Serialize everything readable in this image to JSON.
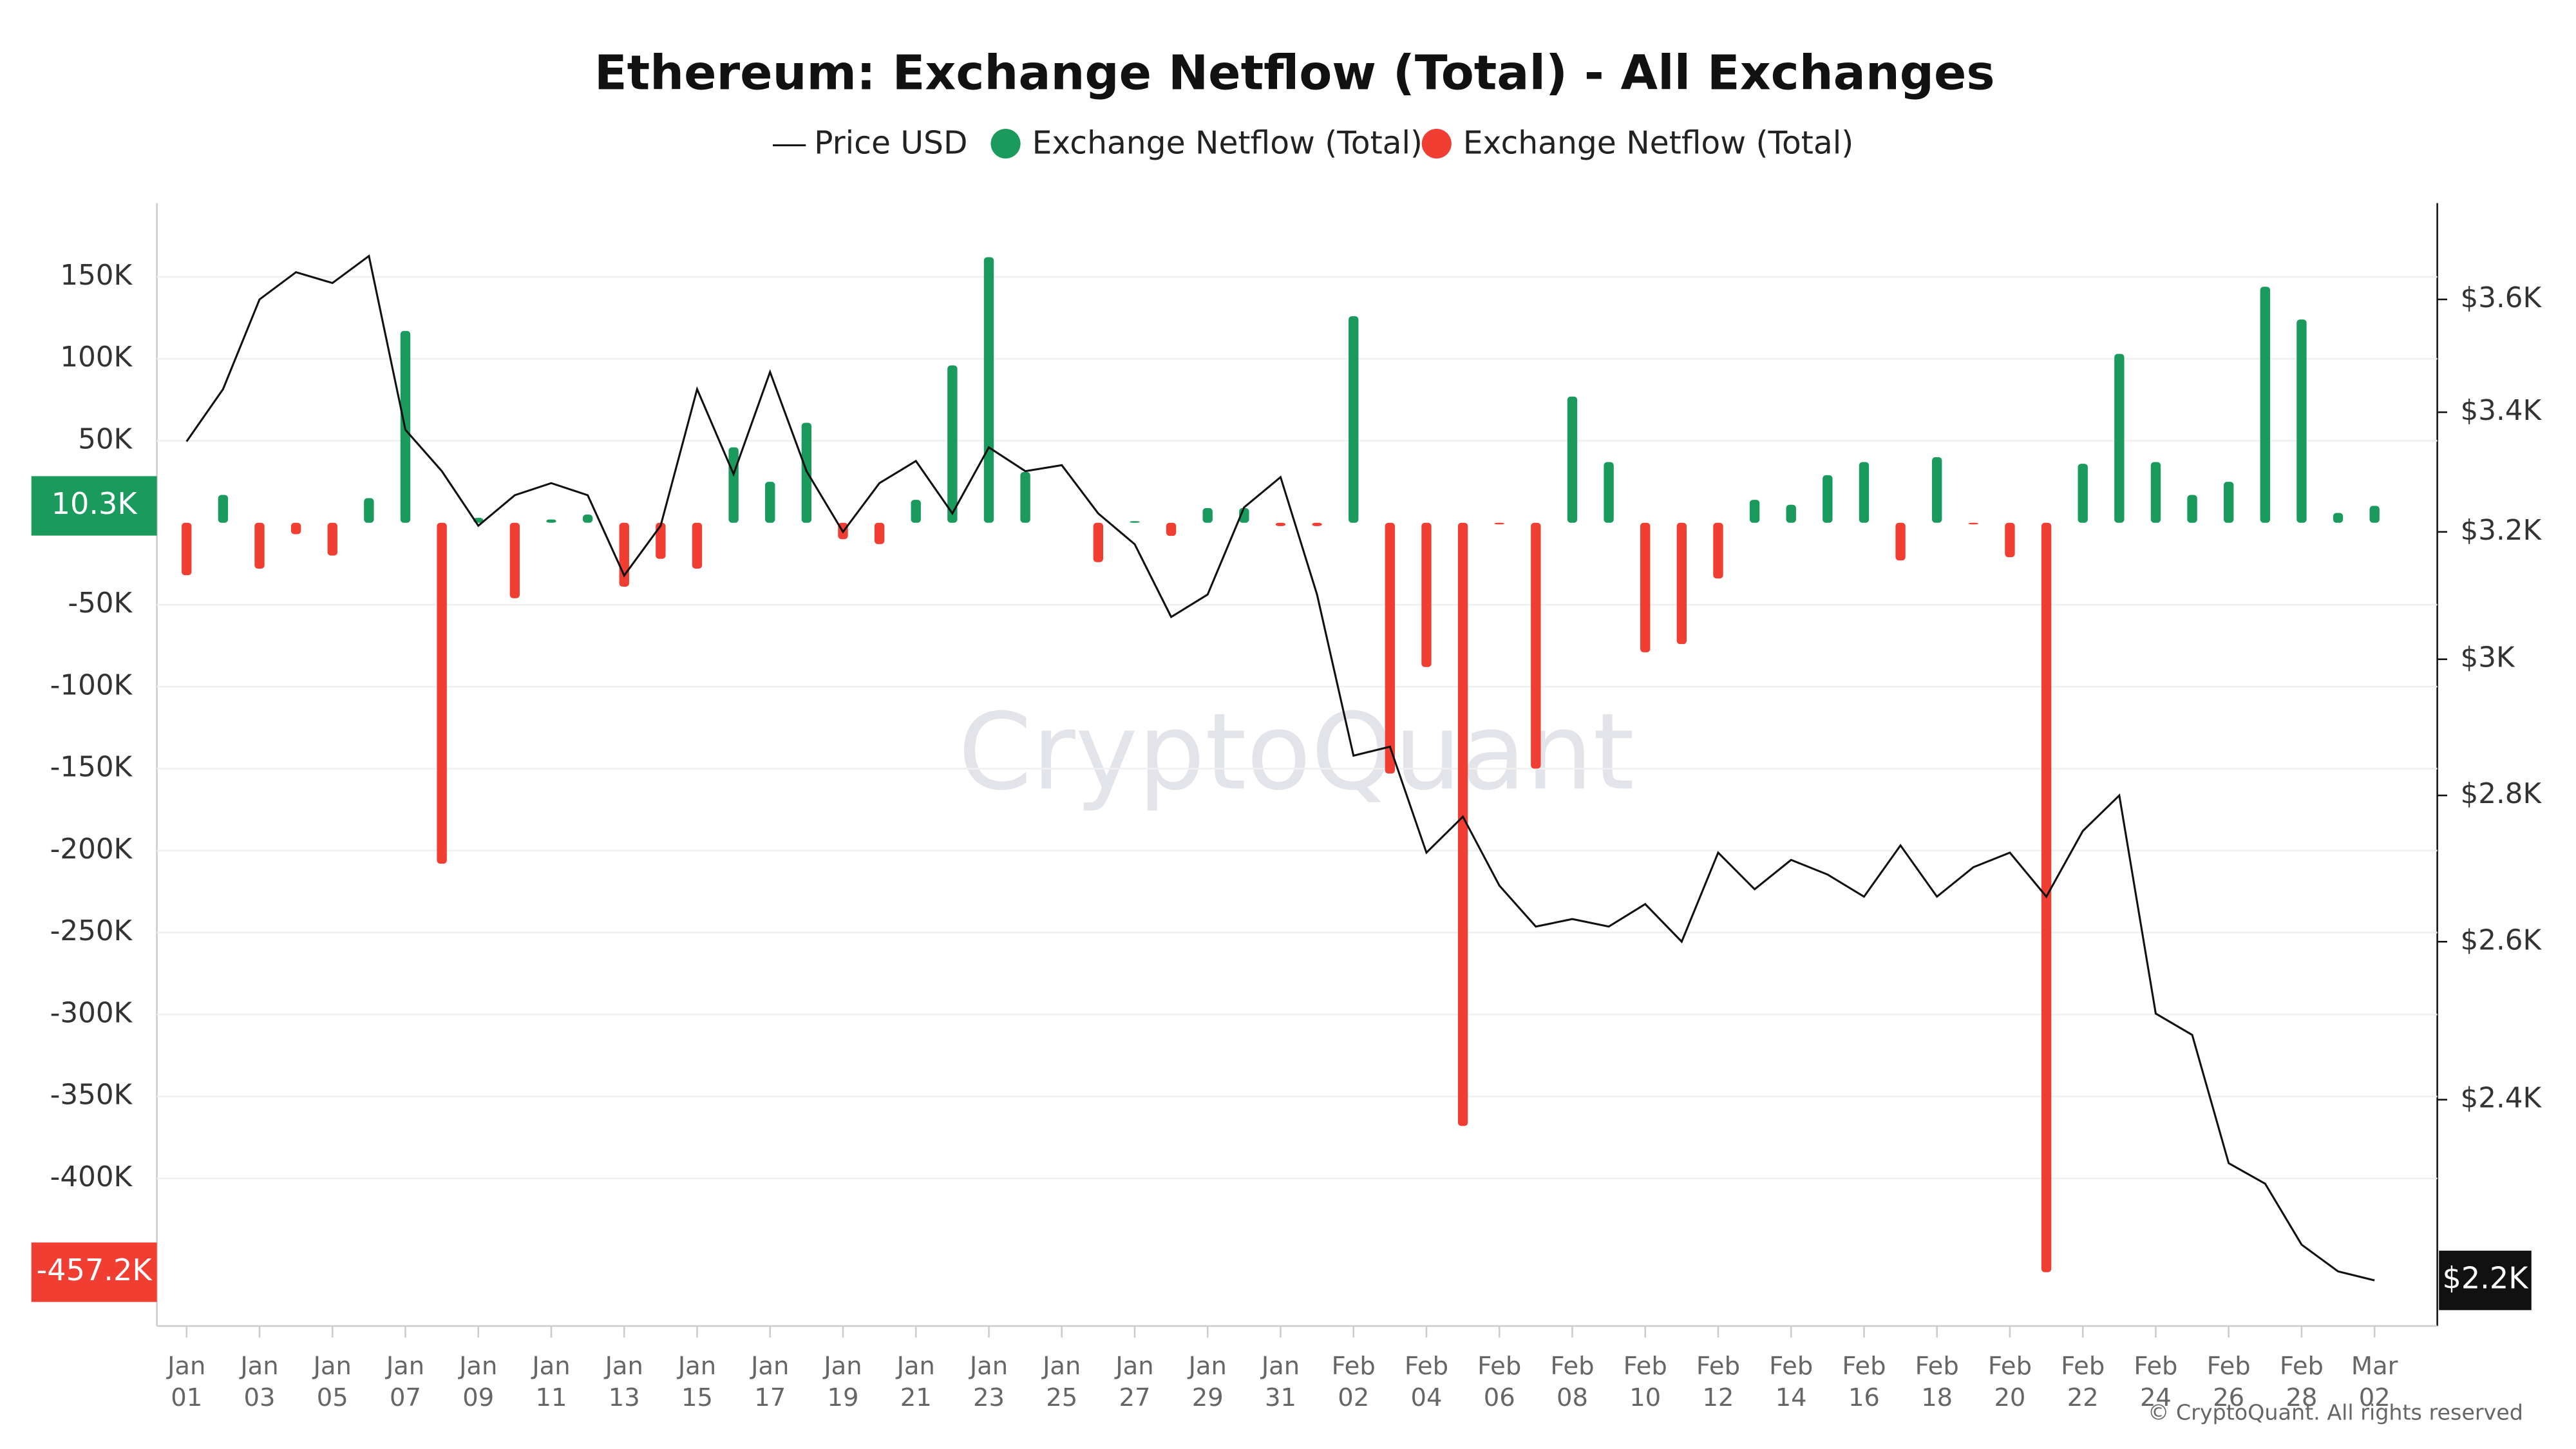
{
  "chart_data": {
    "type": "bar",
    "title": "Ethereum: Exchange Netflow (Total) - All Exchanges",
    "watermark": "CryptoQuant",
    "footer": "© CryptoQuant. All rights reserved",
    "categories": [
      "Jan 01",
      null,
      "Jan 03",
      null,
      "Jan 05",
      null,
      "Jan 07",
      null,
      "Jan 09",
      null,
      "Jan 11",
      null,
      "Jan 13",
      null,
      "Jan 15",
      null,
      "Jan 17",
      null,
      "Jan 19",
      null,
      "Jan 21",
      null,
      "Jan 23",
      null,
      "Jan 25",
      null,
      "Jan 27",
      null,
      "Jan 29",
      null,
      "Jan 31",
      null,
      "Feb 02",
      null,
      "Feb 04",
      null,
      "Feb 06",
      null,
      "Feb 08",
      null,
      "Feb 10",
      null,
      "Feb 12",
      null,
      "Feb 14",
      null,
      "Feb 16",
      null,
      "Feb 18",
      null,
      "Feb 20",
      null,
      "Feb 22",
      null,
      "Feb 24",
      null,
      "Feb 26",
      null,
      "Feb 28",
      null,
      "Mar 02"
    ],
    "series": [
      {
        "name": "Price USD",
        "type": "line",
        "color": "#111111",
        "axis": "y2",
        "values": [
          3350,
          3440,
          3600,
          3650,
          3630,
          3680,
          3370,
          3300,
          3210,
          3260,
          3280,
          3260,
          3130,
          3210,
          3440,
          3295,
          3470,
          3300,
          3200,
          3280,
          3317,
          3230,
          3340,
          3300,
          3310,
          3230,
          3180,
          3065,
          3100,
          3240,
          3290,
          3100,
          2857,
          2870,
          2720,
          2770,
          2675,
          2620,
          2630,
          2620,
          2650,
          2600,
          2720,
          2670,
          2710,
          2690,
          2660,
          2730,
          2660,
          2700,
          2720,
          2660,
          2750,
          2800,
          2507,
          2480,
          2324,
          2300,
          2230,
          2200,
          2190
        ]
      },
      {
        "name": "Exchange Netflow (Total)",
        "type": "bar",
        "color": "#1a9a5c",
        "values": [
          null,
          17,
          null,
          null,
          null,
          15,
          117,
          null,
          3,
          null,
          2,
          5,
          null,
          null,
          null,
          46,
          25,
          61,
          null,
          null,
          14,
          96,
          162,
          31,
          null,
          null,
          1,
          null,
          9,
          9,
          null,
          null,
          126,
          null,
          null,
          null,
          null,
          null,
          77,
          37,
          null,
          null,
          null,
          14,
          11,
          29,
          37,
          null,
          40,
          null,
          null,
          null,
          36,
          103,
          37,
          17,
          25,
          144,
          124,
          6,
          10.3
        ]
      },
      {
        "name": "Exchange Netflow (Total)",
        "type": "bar",
        "color": "#f03e33",
        "values": [
          -32,
          null,
          -28,
          -7,
          -20,
          null,
          null,
          -208,
          null,
          -46,
          null,
          null,
          -39,
          -22,
          -28,
          null,
          null,
          null,
          -10,
          -13,
          null,
          null,
          null,
          null,
          null,
          -24,
          null,
          -8,
          null,
          null,
          -2,
          -2,
          null,
          -153,
          -88,
          -368,
          -1,
          -150,
          null,
          null,
          -79,
          -74,
          -34,
          null,
          null,
          null,
          null,
          -23,
          null,
          -1,
          -21,
          -457.2,
          null,
          null,
          null,
          null,
          null,
          null,
          null,
          null,
          null
        ]
      }
    ],
    "ylim": [
      -490,
      195
    ],
    "yticks": [
      {
        "value": 150,
        "label": "150K"
      },
      {
        "value": 100,
        "label": "100K"
      },
      {
        "value": 50,
        "label": "50K"
      },
      {
        "value": -50,
        "label": "-50K"
      },
      {
        "value": -100,
        "label": "-100K"
      },
      {
        "value": -150,
        "label": "-150K"
      },
      {
        "value": -200,
        "label": "-200K"
      },
      {
        "value": -250,
        "label": "-250K"
      },
      {
        "value": -300,
        "label": "-300K"
      },
      {
        "value": -350,
        "label": "-350K"
      },
      {
        "value": -400,
        "label": "-400K"
      }
    ],
    "y2lim": [
      2140,
      3780
    ],
    "y2log": true,
    "y2ticks": [
      {
        "value": 3600,
        "label": "$3.6K"
      },
      {
        "value": 3400,
        "label": "$3.4K"
      },
      {
        "value": 3200,
        "label": "$3.2K"
      },
      {
        "value": 3000,
        "label": "$3K"
      },
      {
        "value": 2800,
        "label": "$2.8K"
      },
      {
        "value": 2600,
        "label": "$2.6K"
      },
      {
        "value": 2400,
        "label": "$2.4K"
      }
    ],
    "grid": true,
    "legend": "top",
    "annotations": [
      {
        "label": "10.3K",
        "value": 10.3,
        "axis": "y",
        "color": "#1a9a5c"
      },
      {
        "label": "-457.2K",
        "value": -457.2,
        "axis": "y",
        "color": "#f03e33"
      },
      {
        "label": "$2.2K",
        "value": 2190,
        "axis": "y2",
        "color": "#111111"
      }
    ]
  }
}
